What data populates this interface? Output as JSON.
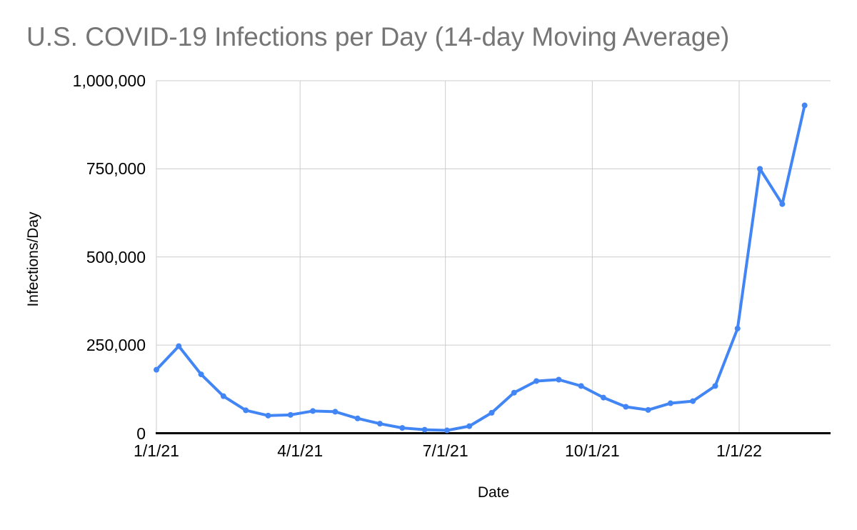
{
  "chart_data": {
    "type": "line",
    "title": "U.S. COVID-19 Infections per Day (14-day Moving Average)",
    "xlabel": "Date",
    "ylabel": "Infections/Day",
    "x": [
      "1/1/21",
      "1/15/21",
      "1/29/21",
      "2/12/21",
      "2/26/21",
      "3/12/21",
      "3/26/21",
      "4/9/21",
      "4/23/21",
      "5/7/21",
      "5/21/21",
      "6/4/21",
      "6/18/21",
      "7/2/21",
      "7/16/21",
      "7/30/21",
      "8/13/21",
      "8/27/21",
      "9/10/21",
      "9/24/21",
      "10/8/21",
      "10/22/21",
      "11/5/21",
      "11/19/21",
      "12/3/21",
      "12/17/21",
      "12/31/21",
      "1/14/22",
      "1/28/22",
      "2/11/22"
    ],
    "values": [
      180000,
      247000,
      167000,
      105000,
      65000,
      50000,
      52000,
      63000,
      61000,
      42000,
      27000,
      15000,
      10000,
      8000,
      20000,
      58000,
      115000,
      148000,
      152000,
      134000,
      101000,
      75000,
      66000,
      85000,
      91000,
      134000,
      297000,
      750000,
      650000,
      930000
    ],
    "x_tick_labels": [
      "1/1/21",
      "4/1/21",
      "7/1/21",
      "10/1/21",
      "1/1/22"
    ],
    "y_tick_labels": [
      "1,000,000",
      "750,000",
      "500,000",
      "250,000",
      "0"
    ],
    "ylim": [
      0,
      1000000
    ],
    "grid": true,
    "legend": "none",
    "marker": "circle",
    "line_color": "#4285f4"
  },
  "colors": {
    "line": "#4285f4",
    "title_text": "#757575",
    "axis_text": "#000000",
    "gridline": "#cccccc",
    "axis_line": "#000000",
    "background": "#ffffff"
  }
}
